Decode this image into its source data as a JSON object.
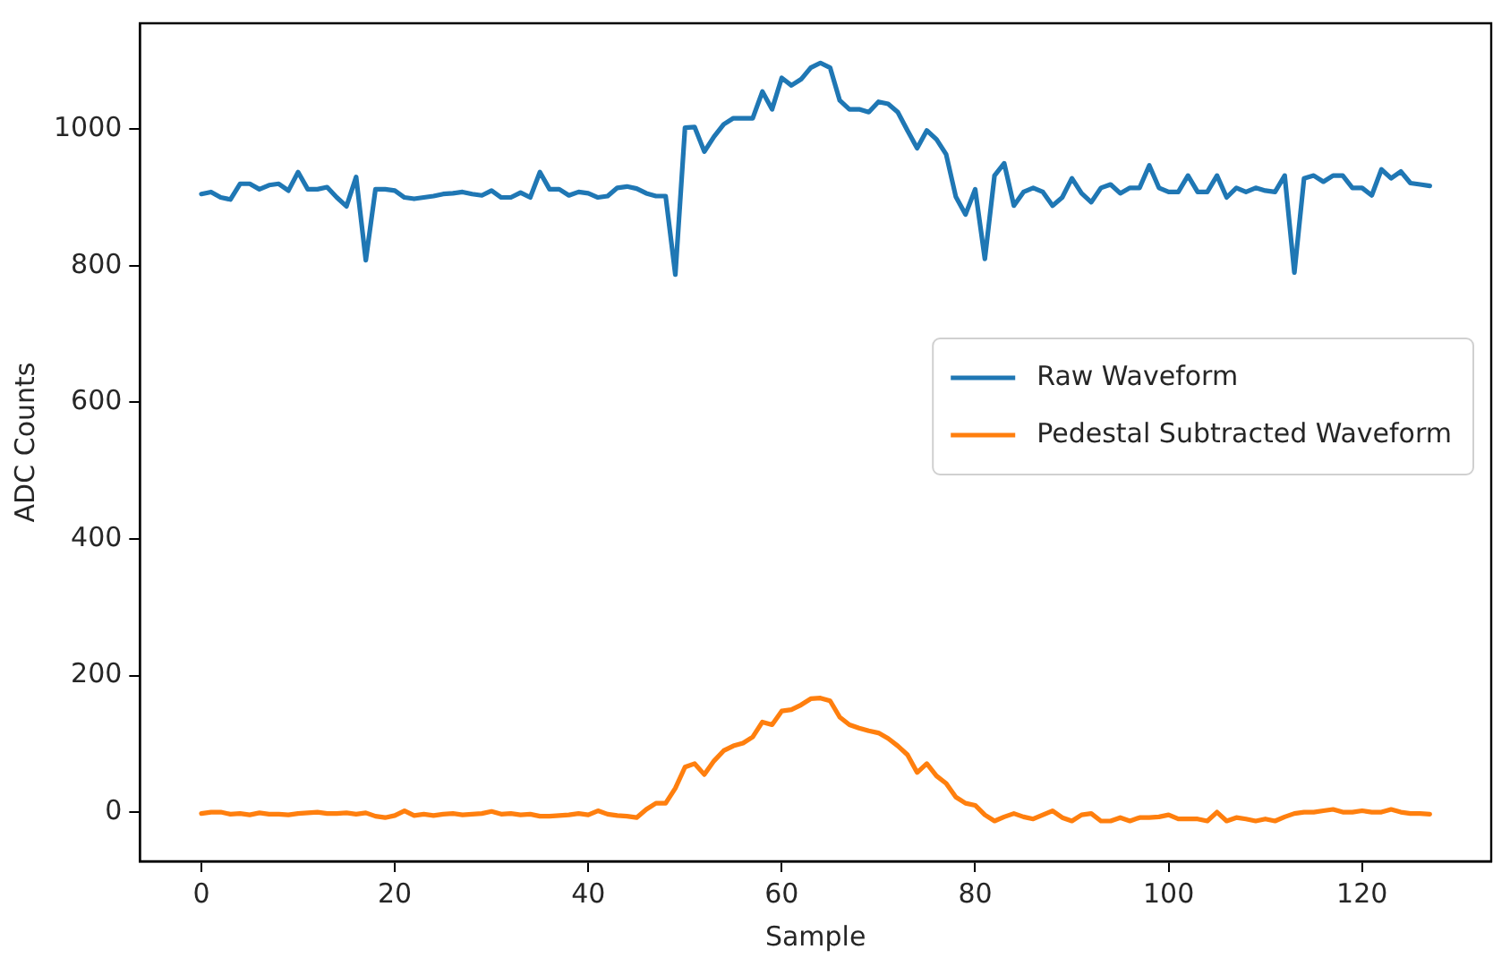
{
  "chart_data": {
    "type": "line",
    "xlabel": "Sample",
    "ylabel": "ADC Counts",
    "x": [
      0,
      1,
      2,
      3,
      4,
      5,
      6,
      7,
      8,
      9,
      10,
      11,
      12,
      13,
      14,
      15,
      16,
      17,
      18,
      19,
      20,
      21,
      22,
      23,
      24,
      25,
      26,
      27,
      28,
      29,
      30,
      31,
      32,
      33,
      34,
      35,
      36,
      37,
      38,
      39,
      40,
      41,
      42,
      43,
      44,
      45,
      46,
      47,
      48,
      49,
      50,
      51,
      52,
      53,
      54,
      55,
      56,
      57,
      58,
      59,
      60,
      61,
      62,
      63,
      64,
      65,
      66,
      67,
      68,
      69,
      70,
      71,
      72,
      73,
      74,
      75,
      76,
      77,
      78,
      79,
      80,
      81,
      82,
      83,
      84,
      85,
      86,
      87,
      88,
      89,
      90,
      91,
      92,
      93,
      94,
      95,
      96,
      97,
      98,
      99,
      100,
      101,
      102,
      103,
      104,
      105,
      106,
      107,
      108,
      109,
      110,
      111,
      112,
      113,
      114,
      115,
      116,
      117,
      118,
      119,
      120,
      121,
      122,
      123,
      124,
      125,
      126,
      127
    ],
    "series": [
      {
        "name": "Raw Waveform",
        "color": "#1f77b4",
        "values": [
          905,
          908,
          900,
          897,
          920,
          920,
          912,
          918,
          920,
          910,
          937,
          912,
          912,
          915,
          900,
          887,
          930,
          808,
          912,
          912,
          910,
          900,
          898,
          900,
          902,
          905,
          906,
          908,
          905,
          903,
          910,
          900,
          900,
          907,
          900,
          937,
          912,
          912,
          903,
          908,
          906,
          900,
          902,
          914,
          916,
          913,
          906,
          902,
          902,
          787,
          1002,
          1003,
          967,
          989,
          1007,
          1016,
          1016,
          1016,
          1055,
          1029,
          1075,
          1064,
          1073,
          1090,
          1097,
          1090,
          1042,
          1029,
          1029,
          1025,
          1040,
          1037,
          1025,
          998,
          972,
          998,
          985,
          963,
          901,
          875,
          912,
          810,
          932,
          950,
          888,
          908,
          914,
          908,
          888,
          900,
          928,
          906,
          893,
          914,
          919,
          906,
          914,
          914,
          947,
          914,
          908,
          908,
          932,
          908,
          908,
          932,
          900,
          914,
          908,
          914,
          910,
          908,
          932,
          790,
          928,
          932,
          923,
          932,
          932,
          914,
          914,
          903,
          941,
          928,
          938,
          921,
          919,
          917
        ]
      },
      {
        "name": "Pedestal Subtracted Waveform",
        "color": "#ff7f0e",
        "values": [
          -2,
          0,
          0,
          -3,
          -2,
          -4,
          -1,
          -3,
          -3,
          -4,
          -2,
          -1,
          0,
          -2,
          -2,
          -1,
          -3,
          -1,
          -6,
          -8,
          -5,
          2,
          -5,
          -3,
          -5,
          -3,
          -2,
          -4,
          -3,
          -2,
          1,
          -3,
          -2,
          -4,
          -3,
          -6,
          -6,
          -5,
          -4,
          -2,
          -4,
          2,
          -3,
          -5,
          -6,
          -8,
          4,
          13,
          13,
          35,
          66,
          71,
          55,
          75,
          90,
          97,
          101,
          110,
          132,
          128,
          148,
          150,
          157,
          166,
          167,
          163,
          139,
          128,
          123,
          119,
          116,
          108,
          97,
          84,
          58,
          71,
          53,
          42,
          22,
          13,
          10,
          -4,
          -13,
          -7,
          -2,
          -7,
          -10,
          -4,
          2,
          -8,
          -13,
          -4,
          -2,
          -13,
          -13,
          -8,
          -13,
          -8,
          -8,
          -7,
          -4,
          -10,
          -10,
          -10,
          -13,
          0,
          -13,
          -8,
          -10,
          -13,
          -10,
          -13,
          -7,
          -2,
          0,
          0,
          2,
          4,
          0,
          0,
          2,
          0,
          0,
          4,
          0,
          -2,
          -2,
          -3
        ]
      }
    ],
    "xlim": [
      -6.35,
      133.35
    ],
    "xticks": [
      0,
      20,
      40,
      60,
      80,
      100,
      120
    ],
    "ylim": [
      -72,
      1155
    ],
    "yticks": [
      0,
      200,
      400,
      600,
      800,
      1000
    ],
    "grid": false,
    "legend": "right",
    "line_style": "solid",
    "marker": "none"
  }
}
